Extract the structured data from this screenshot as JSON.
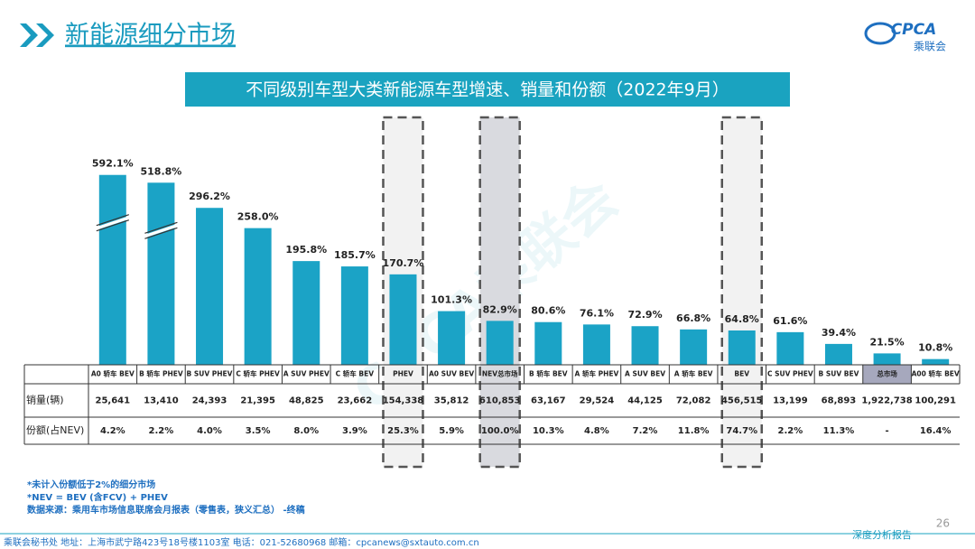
{
  "header": {
    "title": "新能源细分市场",
    "logo_text": "CPCA",
    "logo_subtext": "乘联会"
  },
  "chart_data": {
    "type": "bar",
    "title": "不同级别车型大类新能源车型增速、销量和份额（2022年9月）",
    "categories": [
      "A0 轿车 BEV",
      "B 轿车 PHEV",
      "B SUV PHEV",
      "C 轿车 PHEV",
      "A SUV PHEV",
      "C 轿车 BEV",
      "PHEV",
      "A0 SUV BEV",
      "NEV总市场",
      "B 轿车 BEV",
      "A 轿车 PHEV",
      "A SUV BEV",
      "A 轿车 BEV",
      "BEV",
      "C SUV PHEV",
      "B SUV BEV",
      "总市场",
      "A00 轿车 BEV"
    ],
    "values": [
      592.1,
      518.8,
      296.2,
      258.0,
      195.8,
      185.7,
      170.7,
      101.3,
      82.9,
      80.6,
      76.1,
      72.9,
      66.8,
      64.8,
      61.6,
      39.4,
      21.5,
      10.8
    ],
    "value_labels": [
      "592.1%",
      "518.8%",
      "296.2%",
      "258.0%",
      "195.8%",
      "185.7%",
      "170.7%",
      "101.3%",
      "82.9%",
      "80.6%",
      "76.1%",
      "72.9%",
      "66.8%",
      "64.8%",
      "61.6%",
      "39.4%",
      "21.5%",
      "10.8%"
    ],
    "color": "#1ba3c6",
    "ylim": [
      0,
      300
    ],
    "axis_break": true,
    "highlight_indices": [
      6,
      8,
      13
    ],
    "shaded_indices": [
      8
    ],
    "gray_header_indices": [
      16
    ]
  },
  "table": {
    "row_labels": [
      "销量(辆)",
      "份额(占NEV)"
    ],
    "rows": [
      [
        "25,641",
        "13,410",
        "24,393",
        "21,395",
        "48,825",
        "23,662",
        "154,338",
        "35,812",
        "610,853",
        "63,167",
        "29,524",
        "44,125",
        "72,082",
        "456,515",
        "13,199",
        "68,893",
        "1,922,738",
        "100,291"
      ],
      [
        "4.2%",
        "2.2%",
        "4.0%",
        "3.5%",
        "8.0%",
        "3.9%",
        "25.3%",
        "5.9%",
        "100.0%",
        "10.3%",
        "4.8%",
        "7.2%",
        "11.8%",
        "74.7%",
        "2.2%",
        "11.3%",
        "-",
        "16.4%"
      ]
    ]
  },
  "footnotes": [
    "*未计入份额低于2%的细分市场",
    "*NEV = BEV (含FCV) + PHEV",
    "数据来源：乘用车市场信息联席会月报表（零售表，狭义汇总） -终稿"
  ],
  "footer": {
    "text": "乘联会秘书处   地址：上海市武宁路423号18号楼1103室 电话：021-52680968   邮箱：cpcanews@sxtauto.com.cn",
    "tagline": "深度分析报告",
    "page_number": "26"
  },
  "watermark": "CPCA乘联会"
}
